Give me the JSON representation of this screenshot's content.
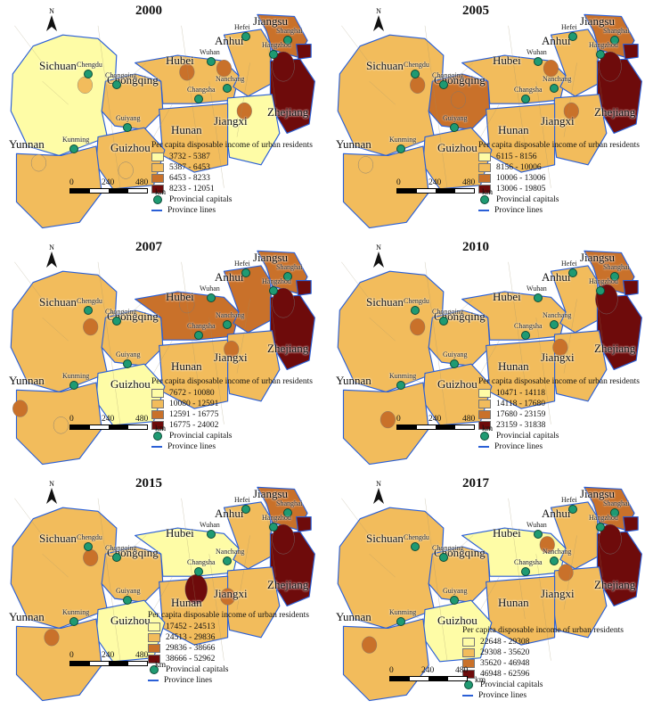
{
  "legend_title": "Per capita disposable income of urban residents",
  "legend_capitals": "Provincial capitals",
  "legend_lines": "Province lines",
  "scale": {
    "n0": "0",
    "n1": "240",
    "n2": "480",
    "unit": "km"
  },
  "north": "N",
  "colors": [
    "#fefca6",
    "#f2bc5c",
    "#c9712a",
    "#6e0b0b"
  ],
  "provinces": {
    "sichuan": "Sichuan",
    "chongqing": "Chongqing",
    "hubei": "Hubei",
    "anhui": "Anhui",
    "jiangsu": "Jiangsu",
    "zhejiang": "Zhejiang",
    "jiangxi": "Jiangxi",
    "hunan": "Hunan",
    "guizhou": "Guizhou",
    "yunnan": "Yunnan"
  },
  "cities": {
    "chengdu": "Chengdu",
    "chongqing": "Chongqing",
    "wuhan": "Wuhan",
    "hefei": "Hefei",
    "shanghai": "Shanghai",
    "hangzhou": "Hangzhou",
    "nanchang": "Nanchang",
    "changsha": "Changsha",
    "guiyang": "Guiyang",
    "kunming": "Kunming"
  },
  "maps": [
    {
      "year": "2000",
      "classes": [
        "3732 - 5387",
        "5387 - 6453",
        "6453 - 8233",
        "8233 - 12051"
      ]
    },
    {
      "year": "2005",
      "classes": [
        "6115 - 8156",
        "8156 - 10006",
        "10006 - 13006",
        "13006 - 19805"
      ]
    },
    {
      "year": "2007",
      "classes": [
        "7672 - 10080",
        "10080 - 12591",
        "12591 - 16775",
        "16775 - 24002"
      ]
    },
    {
      "year": "2010",
      "classes": [
        "10471 - 14118",
        "14118 - 17680",
        "17680 - 23159",
        "23159 - 31838"
      ]
    },
    {
      "year": "2015",
      "classes": [
        "17452 - 24513",
        "24513 - 29836",
        "29836 - 38666",
        "38666 - 52962"
      ]
    },
    {
      "year": "2017",
      "classes": [
        "22648 - 29308",
        "29308 - 35620",
        "35620 - 46948",
        "46948 - 62596"
      ]
    }
  ]
}
